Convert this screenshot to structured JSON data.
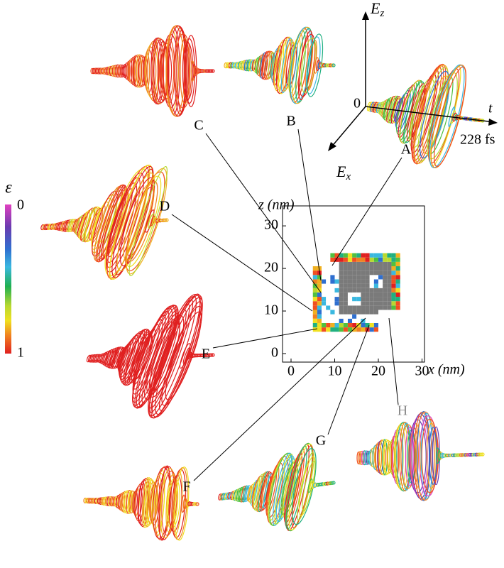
{
  "labels": [
    "A",
    "B",
    "C",
    "D",
    "E",
    "F",
    "G",
    "H"
  ],
  "axes3d": {
    "ez": "E",
    "ez_sub": "z",
    "ex": "E",
    "ex_sub": "x",
    "t": "t",
    "origin": "0",
    "end": "228 fs"
  },
  "colorbar": {
    "symbol": "ε",
    "top": "0",
    "bottom": "1"
  },
  "map": {
    "xlabel": "x (nm)",
    "zlabel": "z (nm)",
    "xticks": [
      "0",
      "10",
      "20",
      "30"
    ],
    "zticks": [
      "0",
      "10",
      "20",
      "30"
    ]
  }
}
